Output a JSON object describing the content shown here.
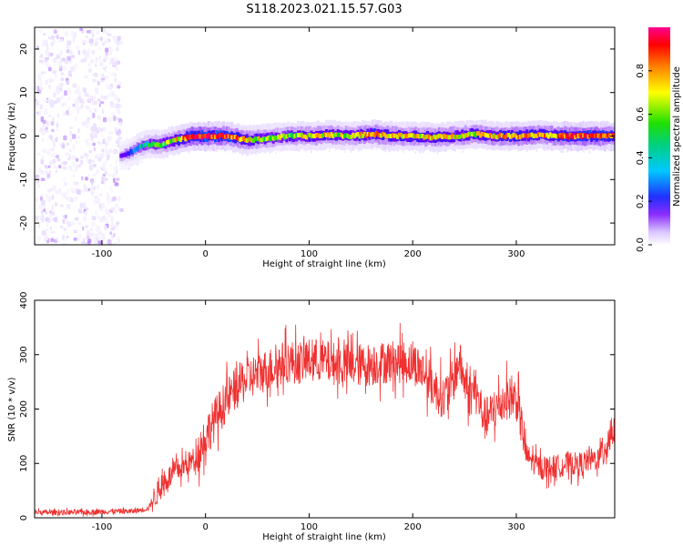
{
  "figure_title": "S118.2023.021.15.57.G03",
  "colors": {
    "snr_line": "#f03030",
    "frame": "#000000",
    "colormap": [
      "#ffffff",
      "#e8dcff",
      "#b070ff",
      "#6a00ff",
      "#2020ff",
      "#00c8ff",
      "#00e000",
      "#ffff00",
      "#ff8000",
      "#ff0000",
      "#ff0090"
    ]
  },
  "chart_data": [
    {
      "type": "heatmap",
      "title": "",
      "xlabel": "Height of straight line (km)",
      "ylabel": "Frequency (Hz)",
      "xlim": [
        -165,
        395
      ],
      "ylim": [
        -25,
        25
      ],
      "xticks": [
        -100,
        0,
        100,
        200,
        300
      ],
      "yticks": [
        -20,
        -10,
        0,
        10,
        20
      ],
      "colorbar": {
        "label": "Normalized spectral amplitude",
        "range": [
          0.0,
          1.0
        ],
        "ticks": [
          0.0,
          0.2,
          0.4,
          0.6,
          0.8
        ]
      },
      "noise_region_x": [
        -165,
        -83
      ],
      "ridge": {
        "x": [
          -83,
          -75,
          -65,
          -55,
          -45,
          -35,
          -25,
          -15,
          0,
          20,
          40,
          60,
          80,
          100,
          120,
          140,
          160,
          180,
          200,
          220,
          240,
          260,
          280,
          300,
          320,
          340,
          360,
          380,
          395
        ],
        "frequency": [
          -4.5,
          -4,
          -2.5,
          -1.8,
          -2,
          -1.2,
          -0.8,
          0,
          0,
          0,
          -1,
          -0.5,
          0,
          0,
          0.3,
          0,
          0.5,
          0,
          0,
          -0.3,
          0,
          0.5,
          0,
          0,
          0.3,
          0,
          0,
          0,
          0
        ],
        "amplitude": [
          0.3,
          0.4,
          0.5,
          0.55,
          0.6,
          0.65,
          0.75,
          0.85,
          0.9,
          0.85,
          0.7,
          0.65,
          0.65,
          0.7,
          0.7,
          0.65,
          0.8,
          0.75,
          0.7,
          0.75,
          0.7,
          0.7,
          0.75,
          0.8,
          0.75,
          0.8,
          0.85,
          0.85,
          0.8
        ]
      }
    },
    {
      "type": "line",
      "title": "",
      "xlabel": "Height of straight line (km)",
      "ylabel": "SNR (10 * v/v)",
      "xlim": [
        -165,
        395
      ],
      "ylim": [
        0,
        400
      ],
      "xticks": [
        -100,
        0,
        100,
        200,
        300
      ],
      "yticks": [
        0,
        100,
        200,
        300,
        400
      ],
      "series": [
        {
          "name": "SNR",
          "x": [
            -165,
            -120,
            -90,
            -70,
            -60,
            -55,
            -50,
            -40,
            -30,
            -20,
            -10,
            0,
            10,
            20,
            30,
            40,
            50,
            60,
            70,
            80,
            90,
            100,
            110,
            120,
            140,
            160,
            180,
            200,
            210,
            220,
            230,
            240,
            245,
            250,
            255,
            260,
            270,
            280,
            290,
            300,
            305,
            310,
            320,
            330,
            340,
            350,
            360,
            370,
            380,
            390,
            395
          ],
          "y": [
            10,
            10,
            12,
            12,
            15,
            18,
            35,
            65,
            85,
            95,
            110,
            150,
            185,
            215,
            240,
            255,
            265,
            272,
            280,
            288,
            285,
            290,
            290,
            285,
            280,
            282,
            288,
            285,
            270,
            240,
            220,
            255,
            290,
            250,
            225,
            235,
            180,
            200,
            220,
            220,
            170,
            115,
            95,
            92,
            95,
            100,
            98,
            105,
            110,
            150,
            170
          ]
        }
      ]
    }
  ]
}
